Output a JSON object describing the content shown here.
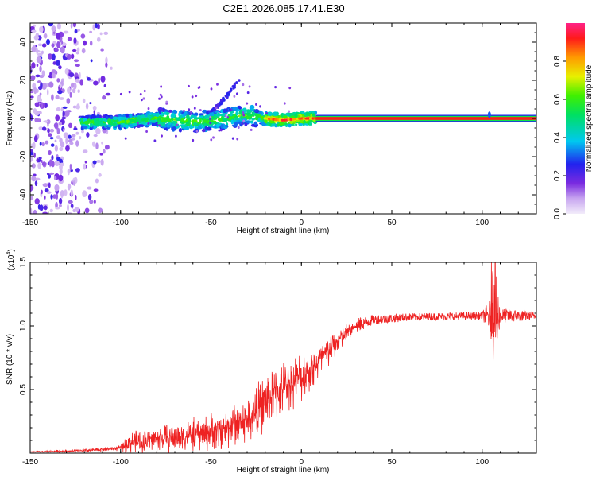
{
  "title": "C2E1.2026.085.17.41.E30",
  "chart_data": [
    {
      "type": "heatmap",
      "xlabel": "Height of straight line (km)",
      "ylabel": "Frequency (Hz)",
      "xlim": [
        -150,
        130
      ],
      "ylim": [
        -50,
        50
      ],
      "xticks": [
        -150,
        -100,
        -50,
        0,
        50,
        100
      ],
      "xticklabels": [
        "-150",
        "-100",
        "-50",
        "0",
        "50",
        "100"
      ],
      "yticks": [
        -40,
        -20,
        0,
        20,
        40
      ],
      "yticklabels": [
        "-40",
        "-20",
        "0",
        "20",
        "40"
      ],
      "colorbar": {
        "label": "Normalized spectral amplitude",
        "range": [
          0,
          1
        ],
        "ticks": [
          0.0,
          0.2,
          0.4,
          0.6,
          0.8
        ],
        "ticklabels": [
          "0.0",
          "0.2",
          "0.4",
          "0.6",
          "0.8"
        ]
      },
      "features": {
        "noise_region_x": [
          -150,
          -105
        ],
        "carrier_band_x": [
          8,
          130
        ],
        "carrier_frequency": 0,
        "carrier_amplitude": 0.92,
        "track": [
          {
            "x": -122,
            "f": -2
          },
          {
            "x": -100,
            "f": -2
          },
          {
            "x": -80,
            "f": 0
          },
          {
            "x": -60,
            "f": -2
          },
          {
            "x": -40,
            "f": 0
          },
          {
            "x": -30,
            "f": 2
          },
          {
            "x": -20,
            "f": 0
          },
          {
            "x": -10,
            "f": -1
          },
          {
            "x": 0,
            "f": 0
          },
          {
            "x": 8,
            "f": 0
          }
        ],
        "secondary_track": [
          {
            "x": -50,
            "f": 3
          },
          {
            "x": -45,
            "f": 8
          },
          {
            "x": -40,
            "f": 13
          },
          {
            "x": -37,
            "f": 17
          },
          {
            "x": -34,
            "f": 21
          }
        ]
      }
    },
    {
      "type": "line",
      "xlabel": "Height of straight line (km)",
      "ylabel": "SNR (10 * v/v)",
      "scale_label": "(x10",
      "scale_exponent": "4",
      "scale_suffix": ")",
      "xlim": [
        -150,
        130
      ],
      "ylim": [
        0,
        1.5
      ],
      "xticks": [
        -150,
        -100,
        -50,
        0,
        50,
        100
      ],
      "xticklabels": [
        "-150",
        "-100",
        "-50",
        "0",
        "50",
        "100"
      ],
      "yticks": [
        0.5,
        1.0,
        1.5
      ],
      "yticklabels": [
        "0.5",
        "1.0",
        "1.5"
      ],
      "color": "#ee2222",
      "series_profile": [
        {
          "x": -150,
          "y": 0.01,
          "noise": 0.005
        },
        {
          "x": -120,
          "y": 0.02,
          "noise": 0.015
        },
        {
          "x": -100,
          "y": 0.04,
          "noise": 0.025
        },
        {
          "x": -95,
          "y": 0.08,
          "noise": 0.1
        },
        {
          "x": -80,
          "y": 0.11,
          "noise": 0.12
        },
        {
          "x": -60,
          "y": 0.14,
          "noise": 0.15
        },
        {
          "x": -45,
          "y": 0.18,
          "noise": 0.18
        },
        {
          "x": -30,
          "y": 0.26,
          "noise": 0.22
        },
        {
          "x": -20,
          "y": 0.4,
          "noise": 0.26
        },
        {
          "x": -10,
          "y": 0.52,
          "noise": 0.24
        },
        {
          "x": 0,
          "y": 0.6,
          "noise": 0.22
        },
        {
          "x": 10,
          "y": 0.72,
          "noise": 0.18
        },
        {
          "x": 20,
          "y": 0.88,
          "noise": 0.12
        },
        {
          "x": 30,
          "y": 1.0,
          "noise": 0.06
        },
        {
          "x": 40,
          "y": 1.05,
          "noise": 0.04
        },
        {
          "x": 60,
          "y": 1.07,
          "noise": 0.03
        },
        {
          "x": 100,
          "y": 1.08,
          "noise": 0.03
        },
        {
          "x": 104,
          "y": 1.08,
          "noise": 0.12
        },
        {
          "x": 107,
          "y": 1.1,
          "noise": 0.4
        },
        {
          "x": 110,
          "y": 1.08,
          "noise": 0.06
        },
        {
          "x": 130,
          "y": 1.08,
          "noise": 0.03
        }
      ]
    }
  ]
}
